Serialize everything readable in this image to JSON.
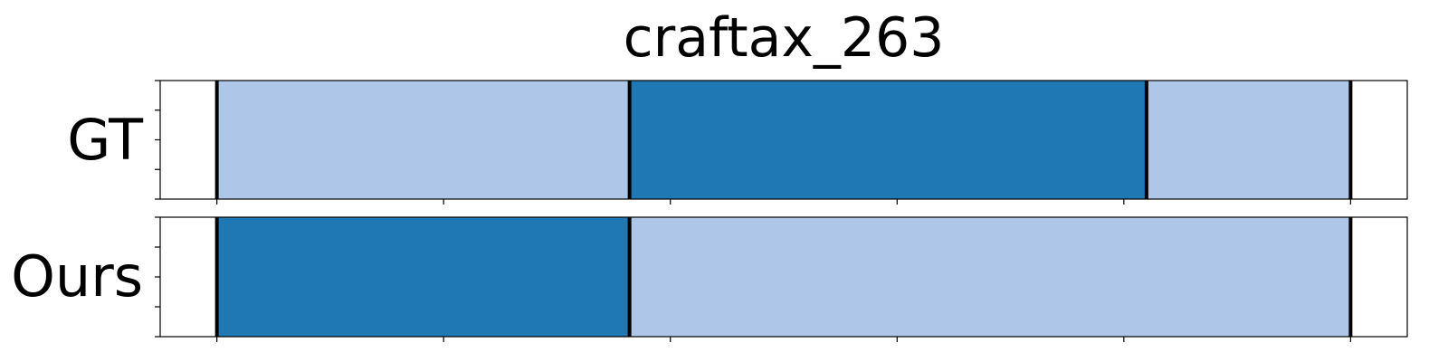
{
  "chart_data": {
    "type": "segmentation-timeline",
    "title": "craftax_263",
    "xlim": [
      -25,
      525
    ],
    "x_ticks": [
      0,
      100,
      200,
      300,
      400,
      500
    ],
    "y_ticks_per_panel": 5,
    "colors": {
      "light": "#aec7e8",
      "dark": "#1f77b4",
      "boundary": "#000000"
    },
    "rows": [
      {
        "label": "GT",
        "segments": [
          {
            "start": 0,
            "end": 182,
            "color": "light"
          },
          {
            "start": 182,
            "end": 410,
            "color": "dark"
          },
          {
            "start": 410,
            "end": 500,
            "color": "light"
          }
        ],
        "boundaries": [
          0,
          182,
          410,
          500
        ]
      },
      {
        "label": "Ours",
        "segments": [
          {
            "start": 0,
            "end": 182,
            "color": "dark"
          },
          {
            "start": 182,
            "end": 500,
            "color": "light"
          }
        ],
        "boundaries": [
          0,
          182,
          500
        ]
      }
    ]
  }
}
